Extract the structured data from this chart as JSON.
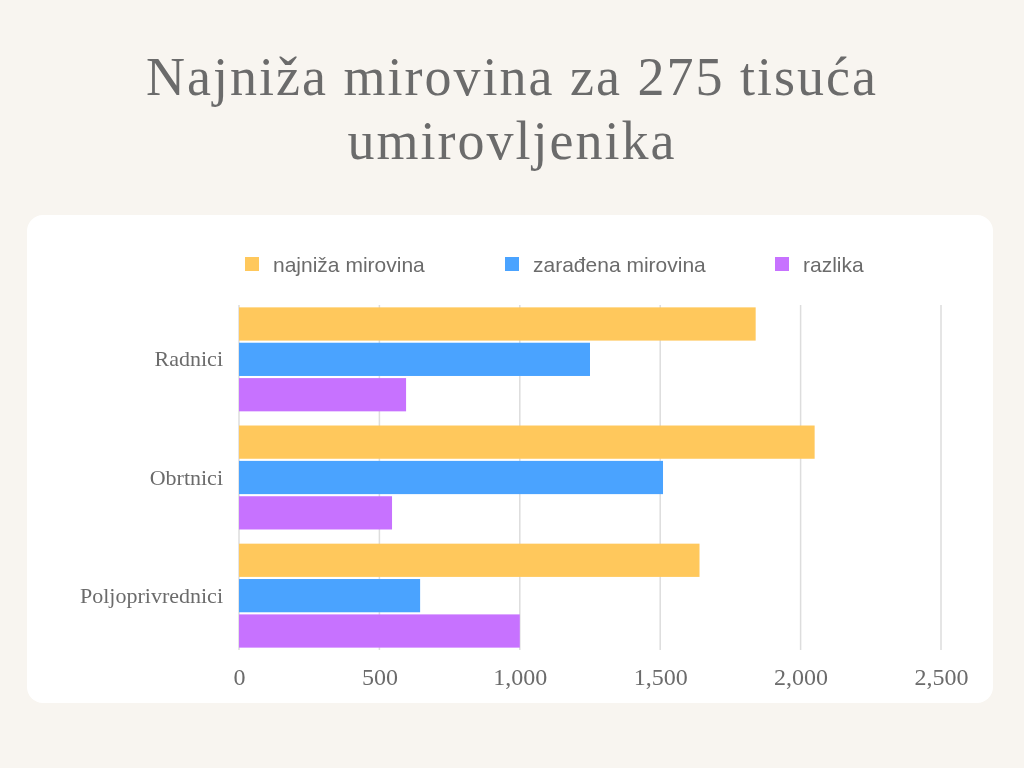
{
  "chart_data": {
    "type": "bar",
    "orientation": "horizontal",
    "title": "Najniža mirovina za 275 tisuća umirovljenika",
    "categories": [
      "Radnici",
      "Obrtnici",
      "Poljoprivrednici"
    ],
    "series": [
      {
        "name": "najniža mirovina",
        "color": "#ffc85c",
        "values": [
          1840,
          2050,
          1640
        ]
      },
      {
        "name": "zarađena mirovina",
        "color": "#4aa3ff",
        "values": [
          1250,
          1510,
          645
        ]
      },
      {
        "name": "razlika",
        "color": "#c772ff",
        "values": [
          595,
          545,
          1000
        ]
      }
    ],
    "xlim": [
      0,
      2500
    ],
    "xticks": [
      0,
      500,
      {
        "value": 1000,
        "label": "1,000"
      },
      {
        "value": 1500,
        "label": "1,500"
      },
      {
        "value": 2000,
        "label": "2,000"
      },
      {
        "value": 2500,
        "label": "2,500"
      }
    ],
    "grid": "x",
    "legend": "top"
  }
}
